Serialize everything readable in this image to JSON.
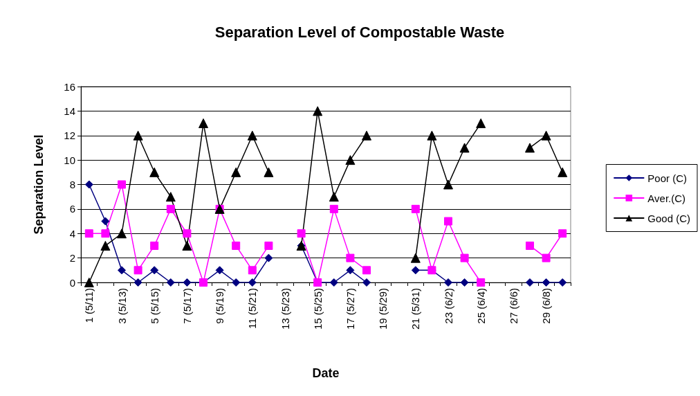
{
  "chart_data": {
    "type": "line",
    "title": "Separation Level of Compostable Waste",
    "xlabel": "Date",
    "ylabel": "Separation Level",
    "categories": [
      "1 (5/11)",
      null,
      "3 (5/13)",
      null,
      "5 (5/15)",
      null,
      "7 (5/17)",
      null,
      "9 (5/19)",
      null,
      "11 (5/21)",
      null,
      "13 (5/23)",
      null,
      "15 (5/25)",
      null,
      "17 (5/27)",
      null,
      "19 (5/29)",
      null,
      "21 (5/31)",
      null,
      "23 (6/2)",
      null,
      "25 (6/4)",
      null,
      "27 (6/6)",
      null,
      "29 (6/8)",
      null
    ],
    "series": [
      {
        "name": "Poor (C)",
        "color": "#000080",
        "marker": "diamond",
        "values": [
          8,
          5,
          1,
          0,
          1,
          0,
          0,
          0,
          1,
          0,
          0,
          2,
          null,
          3,
          0,
          0,
          1,
          0,
          null,
          null,
          1,
          1,
          0,
          0,
          0,
          null,
          null,
          0,
          0,
          0
        ]
      },
      {
        "name": "Aver.(C)",
        "color": "#ff00ff",
        "marker": "square",
        "values": [
          4,
          4,
          8,
          1,
          3,
          6,
          4,
          0,
          6,
          3,
          1,
          3,
          null,
          4,
          0,
          6,
          2,
          1,
          null,
          null,
          6,
          1,
          5,
          2,
          0,
          null,
          null,
          3,
          2,
          4
        ]
      },
      {
        "name": "Good (C)",
        "color": "#000000",
        "marker": "triangle",
        "values": [
          0,
          3,
          4,
          12,
          9,
          7,
          3,
          13,
          6,
          9,
          12,
          9,
          null,
          3,
          14,
          7,
          10,
          12,
          null,
          null,
          2,
          12,
          8,
          11,
          13,
          null,
          null,
          11,
          12,
          9
        ]
      }
    ],
    "ylim": [
      0,
      16
    ],
    "yticks": [
      0,
      2,
      4,
      6,
      8,
      10,
      12,
      14,
      16
    ],
    "grid": "y",
    "legend": "right",
    "line_style": "solid"
  }
}
